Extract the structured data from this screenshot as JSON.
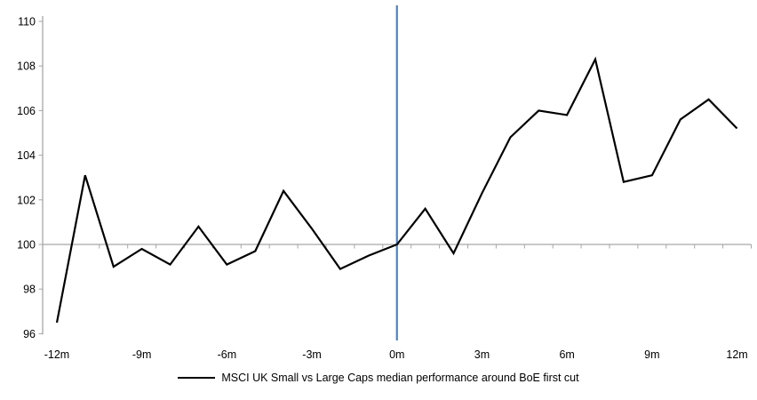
{
  "chart_data": {
    "type": "line",
    "title": "",
    "legend": "MSCI UK Small vs Large Caps median performance around BoE first cut",
    "x": [
      -12,
      -11,
      -10,
      -9,
      -8,
      -7,
      -6,
      -5,
      -4,
      -3,
      -2,
      -1,
      0,
      1,
      2,
      3,
      4,
      5,
      6,
      7,
      8,
      9,
      10,
      11,
      12
    ],
    "series": [
      {
        "name": "MSCI UK Small vs Large Caps median performance around BoE first cut",
        "values": [
          96.5,
          103.1,
          99.0,
          99.8,
          99.1,
          100.8,
          99.1,
          99.7,
          102.4,
          100.7,
          98.9,
          99.5,
          100.0,
          101.6,
          99.6,
          102.3,
          104.8,
          106.0,
          105.8,
          108.3,
          102.8,
          103.1,
          105.6,
          106.5,
          105.2
        ]
      }
    ],
    "y_ticks": [
      96,
      98,
      100,
      102,
      104,
      106,
      108,
      110
    ],
    "ylim": [
      96,
      110
    ],
    "x_tick_months": [
      -12,
      -9,
      -6,
      -3,
      0,
      3,
      6,
      9,
      12
    ],
    "x_tick_labels": [
      "-12m",
      "-9m",
      "-6m",
      "-3m",
      "0m",
      "3m",
      "6m",
      "9m",
      "12m"
    ],
    "baseline_value": 100,
    "event_line_x": 0,
    "legend_position": "bottom",
    "grid": "off",
    "colors": {
      "series": "#000000",
      "event_line": "#4F81BD",
      "axis": "#A6A6A6",
      "text": "#000000",
      "background": "#FFFFFF"
    }
  }
}
